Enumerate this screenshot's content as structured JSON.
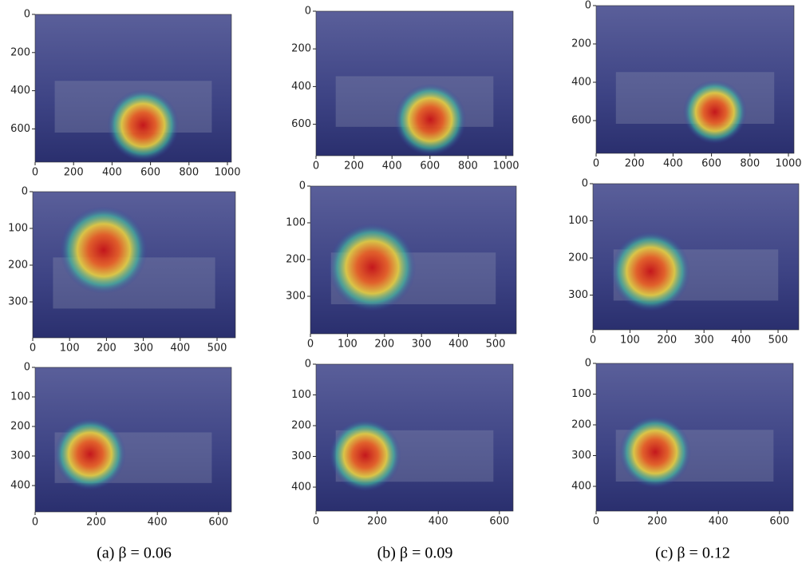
{
  "panels": [
    {
      "xticks": [
        0,
        200,
        400,
        600,
        800,
        1000
      ],
      "yticks": [
        0,
        200,
        400,
        600
      ]
    },
    {
      "xticks": [
        0,
        200,
        400,
        600,
        800,
        1000
      ],
      "yticks": [
        0,
        200,
        400,
        600
      ]
    },
    {
      "xticks": [
        0,
        200,
        400,
        600,
        800,
        1000
      ],
      "yticks": [
        0,
        200,
        400,
        600
      ]
    },
    {
      "xticks": [
        0,
        100,
        200,
        300,
        400,
        500
      ],
      "yticks": [
        0,
        100,
        200,
        300
      ]
    },
    {
      "xticks": [
        0,
        100,
        200,
        300,
        400,
        500
      ],
      "yticks": [
        0,
        100,
        200,
        300
      ]
    },
    {
      "xticks": [
        0,
        100,
        200,
        300,
        400,
        500
      ],
      "yticks": [
        0,
        100,
        200,
        300
      ]
    },
    {
      "xticks": [
        0,
        200,
        400,
        600
      ],
      "yticks": [
        0,
        100,
        200,
        300,
        400
      ]
    },
    {
      "xticks": [
        0,
        200,
        400,
        600
      ],
      "yticks": [
        0,
        100,
        200,
        300,
        400
      ]
    },
    {
      "xticks": [
        0,
        200,
        400,
        600
      ],
      "yticks": [
        0,
        100,
        200,
        300,
        400
      ]
    }
  ],
  "captions": [
    "(a) β = 0.06",
    "(b) β = 0.09",
    "(c) β = 0.12"
  ]
}
